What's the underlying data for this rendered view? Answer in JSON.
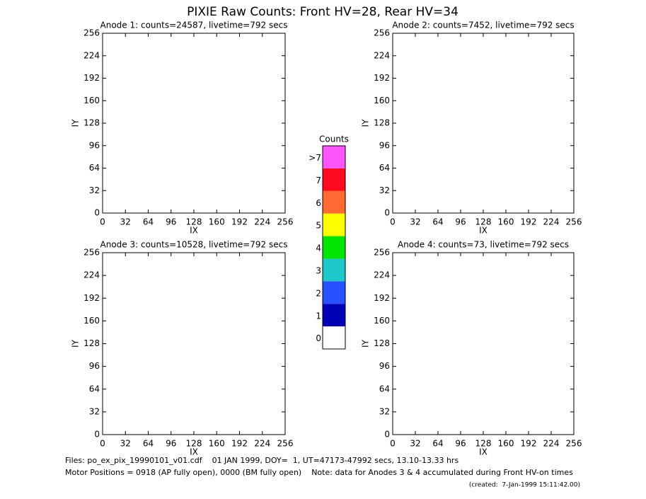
{
  "title": "PIXIE Raw Counts:  Front HV=28, Rear HV=34",
  "chart_data": [
    {
      "type": "heatmap",
      "title": "Anode 1: counts=24587, livetime=792 secs",
      "xlabel": "IX",
      "ylabel": "IY",
      "xlim": [
        0,
        256
      ],
      "ylim": [
        0,
        256
      ],
      "xticks": [
        0,
        32,
        64,
        96,
        128,
        160,
        192,
        224,
        256
      ],
      "yticks": [
        0,
        32,
        64,
        96,
        128,
        160,
        192,
        224,
        256
      ]
    },
    {
      "type": "heatmap",
      "title": "Anode 2: counts=7452, livetime=792 secs",
      "xlabel": "IX",
      "ylabel": "IY",
      "xlim": [
        0,
        256
      ],
      "ylim": [
        0,
        256
      ],
      "xticks": [
        0,
        32,
        64,
        96,
        128,
        160,
        192,
        224,
        256
      ],
      "yticks": [
        0,
        32,
        64,
        96,
        128,
        160,
        192,
        224,
        256
      ]
    },
    {
      "type": "heatmap",
      "title": "Anode 3: counts=10528, livetime=792 secs",
      "xlabel": "IX",
      "ylabel": "IY",
      "xlim": [
        0,
        256
      ],
      "ylim": [
        0,
        256
      ],
      "xticks": [
        0,
        32,
        64,
        96,
        128,
        160,
        192,
        224,
        256
      ],
      "yticks": [
        0,
        32,
        64,
        96,
        128,
        160,
        192,
        224,
        256
      ]
    },
    {
      "type": "heatmap",
      "title": "Anode 4: counts=73, livetime=792 secs",
      "xlabel": "IX",
      "ylabel": "IY",
      "xlim": [
        0,
        256
      ],
      "ylim": [
        0,
        256
      ],
      "xticks": [
        0,
        32,
        64,
        96,
        128,
        160,
        192,
        224,
        256
      ],
      "yticks": [
        0,
        32,
        64,
        96,
        128,
        160,
        192,
        224,
        256
      ]
    },
    {
      "type": "colorbar",
      "title": "Counts",
      "categories": [
        "0",
        "1",
        "2",
        "3",
        "4",
        "5",
        "6",
        "7",
        ">7"
      ],
      "colors": [
        "#ffffff",
        "#0000b4",
        "#2850ff",
        "#1ec8c8",
        "#00e600",
        "#ffff00",
        "#ff6a32",
        "#ff0a1e",
        "#ff55ff"
      ]
    }
  ],
  "footer": {
    "lines": [
      "Files: po_ex_pix_19990101_v01.cdf    01 JAN 1999, DOY=  1, UT=47173-47992 secs, 13.10-13.33 hrs",
      "Motor Positions = 0918 (AP fully open), 0000 (BM fully open)    Note: data for Anodes 3 & 4 accumulated during Front HV-on times"
    ],
    "created": "(created:  7-Jan-1999 15:11:42.00)"
  }
}
